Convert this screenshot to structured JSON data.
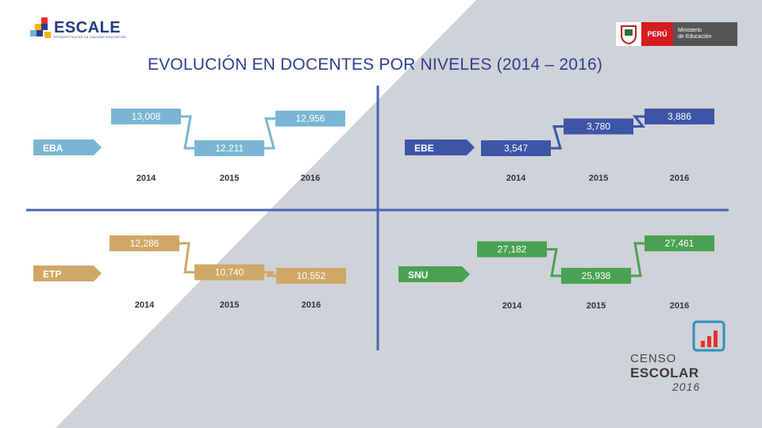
{
  "header": {
    "logo_text": "ESCALE",
    "logo_subtitle": "ESTADÍSTICA DE LA CALIDAD EDUCATIVA",
    "title": "EVOLUCIÓN EN DOCENTES POR NIVELES (2014 – 2016)",
    "ministry_country": "PERÚ",
    "ministry_name_line1": "Ministerio",
    "ministry_name_line2": "de Educación"
  },
  "footer": {
    "censo_line1": "CENSO",
    "censo_line2": "ESCOLAR",
    "censo_line3": "2016"
  },
  "colors": {
    "eba": "#7ab6d3",
    "ebe": "#3d55a6",
    "etp": "#cfa866",
    "snu": "#4aa153",
    "divider": "#4a63b0",
    "bg_gray": "#cfd2d8"
  },
  "chart_data": {
    "type": "line",
    "title": "EVOLUCIÓN EN DOCENTES POR NIVELES (2014 – 2016)",
    "categories": [
      "2014",
      "2015",
      "2016"
    ],
    "series": [
      {
        "name": "EBA",
        "values": [
          13008,
          12211,
          12956
        ],
        "labels": [
          "13,008",
          "12,211",
          "12,956"
        ]
      },
      {
        "name": "EBE",
        "values": [
          3547,
          3780,
          3886
        ],
        "labels": [
          "3,547",
          "3,780",
          "3,886"
        ]
      },
      {
        "name": "ETP",
        "values": [
          12286,
          10740,
          10552
        ],
        "labels": [
          "12,286",
          "10,740",
          "10,552"
        ]
      },
      {
        "name": "SNU",
        "values": [
          27182,
          25938,
          27461
        ],
        "labels": [
          "27,182",
          "25,938",
          "27,461"
        ]
      }
    ]
  }
}
